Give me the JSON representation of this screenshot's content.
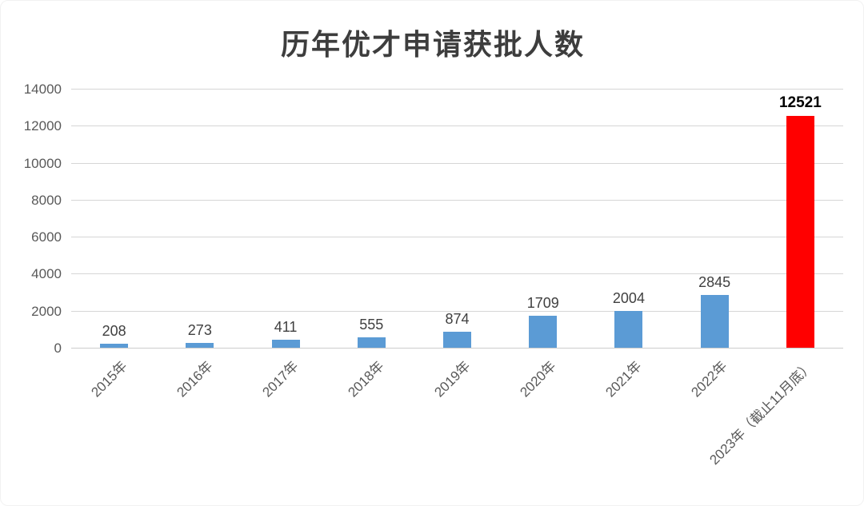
{
  "page": {
    "title": "历年优才申请获批人数"
  },
  "chart_data": {
    "type": "bar",
    "title": "历年优才申请获批人数",
    "categories": [
      "2015年",
      "2016年",
      "2017年",
      "2018年",
      "2019年",
      "2020年",
      "2021年",
      "2022年",
      "2023年（截止11月底）"
    ],
    "values": [
      208,
      273,
      411,
      555,
      874,
      1709,
      2004,
      2845,
      12521
    ],
    "data_labels": [
      "208",
      "273",
      "411",
      "555",
      "874",
      "1709",
      "2004",
      "2845",
      "12521"
    ],
    "xlabel": "",
    "ylabel": "",
    "ylim": [
      0,
      14000
    ],
    "yticks": [
      0,
      2000,
      4000,
      6000,
      8000,
      10000,
      12000,
      14000
    ],
    "grid": true,
    "legend": "none",
    "highlight_index": 8,
    "colors": {
      "bar_default": "#5B9BD5",
      "bar_highlight": "#FF0000",
      "gridline": "#d6d6d6",
      "axis_text": "#595959",
      "data_label": "#404040",
      "data_label_highlight": "#000000",
      "title_text": "#3d3d3d"
    }
  }
}
